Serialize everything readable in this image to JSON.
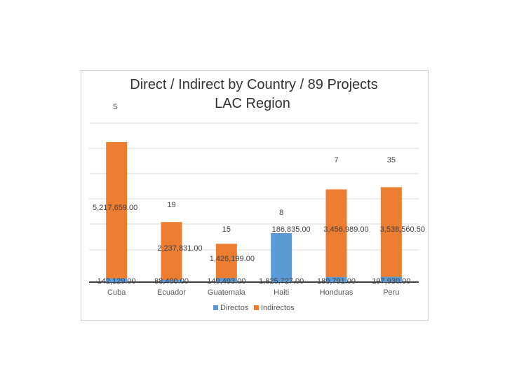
{
  "chart_data": {
    "type": "bar",
    "title": "Direct / Indirect by Country / 89 Projects",
    "subtitle": "LAC Region",
    "categories": [
      "Cuba",
      "Ecuador",
      "Guatemala",
      "Haiti",
      "Honduras",
      "Peru"
    ],
    "series": [
      {
        "name": "Directos",
        "color": "#5B9BD5",
        "values": [
          142129.0,
          88400.0,
          149493.0,
          1825727.0,
          189791.0,
          197930.0
        ],
        "labels": [
          "142,129.00",
          "88,400.00",
          "149,493.00",
          "1,825,727.00",
          "189,791.00",
          "197,930.00"
        ]
      },
      {
        "name": "Indirectos",
        "color": "#ED7D31",
        "values": [
          5217659.0,
          2237831.0,
          1426199.0,
          186835.0,
          3456989.0,
          3538560.5
        ],
        "labels": [
          "5,217,659.00",
          "2,237,831.00",
          "1,426,199.00",
          "186,835.00",
          "3,456,989.00",
          "3,538,560.50"
        ]
      }
    ],
    "project_counts": [
      "5",
      "19",
      "15",
      "8",
      "7",
      "35"
    ],
    "gridlines": true,
    "legend_position": "bottom"
  }
}
